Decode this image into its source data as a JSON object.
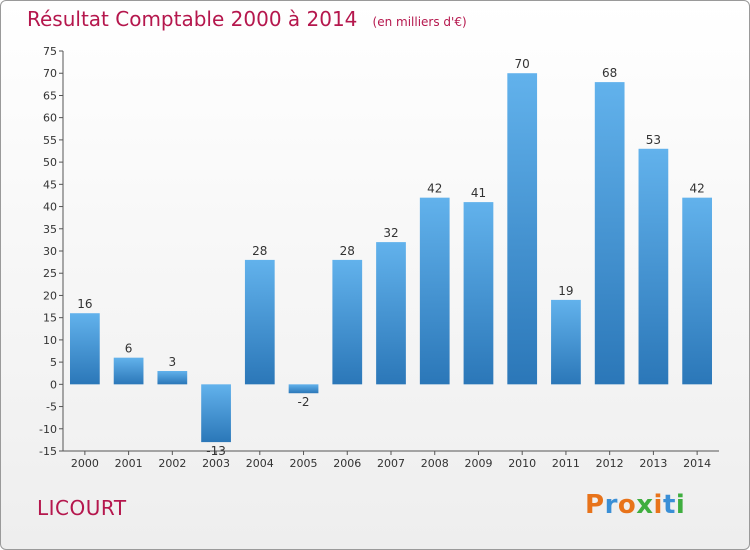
{
  "header": {
    "title": "Résultat Comptable 2000 à 2014",
    "subtitle": "(en milliers d'€)"
  },
  "footer": {
    "commune": "LICOURT",
    "logo": "Proxiti",
    "logo_colors": [
      "#e8731a",
      "#3a8fd6",
      "#e8731a",
      "#3fae3f",
      "#e8731a",
      "#3a8fd6",
      "#3fae3f"
    ]
  },
  "chart_data": {
    "type": "bar",
    "title": "Résultat Comptable 2000 à 2014",
    "subtitle": "(en milliers d'€)",
    "xlabel": "",
    "ylabel": "",
    "categories": [
      "2000",
      "2001",
      "2002",
      "2003",
      "2004",
      "2005",
      "2006",
      "2007",
      "2008",
      "2009",
      "2010",
      "2011",
      "2012",
      "2013",
      "2014"
    ],
    "values": [
      16,
      6,
      3,
      -13,
      28,
      -2,
      28,
      32,
      42,
      41,
      70,
      19,
      68,
      53,
      42
    ],
    "ylim": [
      -15,
      75
    ],
    "yticks": [
      75,
      70,
      65,
      60,
      55,
      50,
      45,
      40,
      35,
      30,
      25,
      20,
      15,
      10,
      5,
      0,
      -5,
      -10,
      -15
    ],
    "grid": false,
    "legend": "none",
    "colors": {
      "bar_light": "#62b2ec",
      "bar_dark": "#2b77b8",
      "title": "#b5174d"
    }
  }
}
